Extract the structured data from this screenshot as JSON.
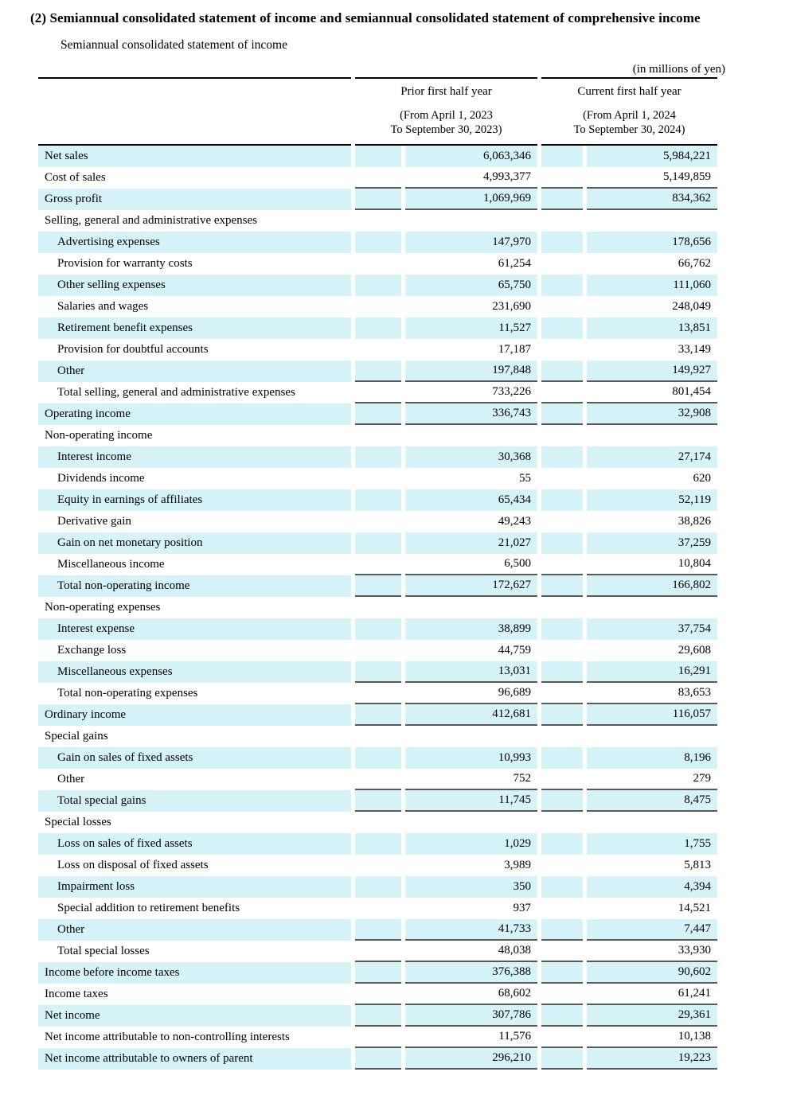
{
  "title": "(2) Semiannual consolidated statement of income and semiannual consolidated statement of comprehensive income",
  "subtitle": "Semiannual consolidated statement of income",
  "unit_note": "(in millions of yen)",
  "columns": {
    "prior": {
      "label": "Prior first half year",
      "period_line1": "(From April 1, 2023",
      "period_line2": "To September 30, 2023)"
    },
    "current": {
      "label": "Current first half year",
      "period_line1": "(From April 1, 2024",
      "period_line2": "To September 30, 2024)"
    }
  },
  "colors": {
    "row_highlight": "#d6f4f8",
    "header_rule": "#000000",
    "subtotal_rule": "#5a5a5a"
  },
  "rows": [
    {
      "label": "Net sales",
      "indent": 0,
      "prior": "6,063,346",
      "current": "5,984,221",
      "rule": false
    },
    {
      "label": "Cost of sales",
      "indent": 0,
      "prior": "4,993,377",
      "current": "5,149,859",
      "rule": true
    },
    {
      "label": "Gross profit",
      "indent": 0,
      "prior": "1,069,969",
      "current": "834,362",
      "rule": true
    },
    {
      "label": "Selling, general and administrative expenses",
      "indent": 0,
      "prior": "",
      "current": "",
      "rule": false
    },
    {
      "label": "Advertising expenses",
      "indent": 1,
      "prior": "147,970",
      "current": "178,656",
      "rule": false
    },
    {
      "label": "Provision for warranty costs",
      "indent": 1,
      "prior": "61,254",
      "current": "66,762",
      "rule": false
    },
    {
      "label": "Other selling expenses",
      "indent": 1,
      "prior": "65,750",
      "current": "111,060",
      "rule": false
    },
    {
      "label": "Salaries and wages",
      "indent": 1,
      "prior": "231,690",
      "current": "248,049",
      "rule": false
    },
    {
      "label": "Retirement benefit expenses",
      "indent": 1,
      "prior": "11,527",
      "current": "13,851",
      "rule": false
    },
    {
      "label": "Provision for doubtful accounts",
      "indent": 1,
      "prior": "17,187",
      "current": "33,149",
      "rule": false
    },
    {
      "label": "Other",
      "indent": 1,
      "prior": "197,848",
      "current": "149,927",
      "rule": true
    },
    {
      "label": "Total selling, general and administrative expenses",
      "indent": 1,
      "prior": "733,226",
      "current": "801,454",
      "rule": true
    },
    {
      "label": "Operating income",
      "indent": 0,
      "prior": "336,743",
      "current": "32,908",
      "rule": true
    },
    {
      "label": "Non-operating income",
      "indent": 0,
      "prior": "",
      "current": "",
      "rule": false
    },
    {
      "label": "Interest income",
      "indent": 1,
      "prior": "30,368",
      "current": "27,174",
      "rule": false
    },
    {
      "label": "Dividends income",
      "indent": 1,
      "prior": "55",
      "current": "620",
      "rule": false
    },
    {
      "label": "Equity in earnings of affiliates",
      "indent": 1,
      "prior": "65,434",
      "current": "52,119",
      "rule": false
    },
    {
      "label": "Derivative gain",
      "indent": 1,
      "prior": "49,243",
      "current": "38,826",
      "rule": false
    },
    {
      "label": "Gain on net monetary position",
      "indent": 1,
      "prior": "21,027",
      "current": "37,259",
      "rule": false
    },
    {
      "label": "Miscellaneous income",
      "indent": 1,
      "prior": "6,500",
      "current": "10,804",
      "rule": true
    },
    {
      "label": "Total non-operating income",
      "indent": 1,
      "prior": "172,627",
      "current": "166,802",
      "rule": true
    },
    {
      "label": "Non-operating expenses",
      "indent": 0,
      "prior": "",
      "current": "",
      "rule": false
    },
    {
      "label": "Interest expense",
      "indent": 1,
      "prior": "38,899",
      "current": "37,754",
      "rule": false
    },
    {
      "label": "Exchange loss",
      "indent": 1,
      "prior": "44,759",
      "current": "29,608",
      "rule": false
    },
    {
      "label": "Miscellaneous expenses",
      "indent": 1,
      "prior": "13,031",
      "current": "16,291",
      "rule": true
    },
    {
      "label": "Total non-operating expenses",
      "indent": 1,
      "prior": "96,689",
      "current": "83,653",
      "rule": true
    },
    {
      "label": "Ordinary income",
      "indent": 0,
      "prior": "412,681",
      "current": "116,057",
      "rule": true
    },
    {
      "label": "Special gains",
      "indent": 0,
      "prior": "",
      "current": "",
      "rule": false
    },
    {
      "label": "Gain on sales of fixed assets",
      "indent": 1,
      "prior": "10,993",
      "current": "8,196",
      "rule": false
    },
    {
      "label": "Other",
      "indent": 1,
      "prior": "752",
      "current": "279",
      "rule": true
    },
    {
      "label": "Total special gains",
      "indent": 1,
      "prior": "11,745",
      "current": "8,475",
      "rule": true
    },
    {
      "label": "Special losses",
      "indent": 0,
      "prior": "",
      "current": "",
      "rule": false
    },
    {
      "label": "Loss on sales of fixed assets",
      "indent": 1,
      "prior": "1,029",
      "current": "1,755",
      "rule": false
    },
    {
      "label": "Loss on disposal of fixed assets",
      "indent": 1,
      "prior": "3,989",
      "current": "5,813",
      "rule": false
    },
    {
      "label": "Impairment loss",
      "indent": 1,
      "prior": "350",
      "current": "4,394",
      "rule": false
    },
    {
      "label": "Special addition to retirement benefits",
      "indent": 1,
      "prior": "937",
      "current": "14,521",
      "rule": false
    },
    {
      "label": "Other",
      "indent": 1,
      "prior": "41,733",
      "current": "7,447",
      "rule": true
    },
    {
      "label": "Total special losses",
      "indent": 1,
      "prior": "48,038",
      "current": "33,930",
      "rule": true
    },
    {
      "label": "Income before income taxes",
      "indent": 0,
      "prior": "376,388",
      "current": "90,602",
      "rule": true
    },
    {
      "label": "Income taxes",
      "indent": 0,
      "prior": "68,602",
      "current": "61,241",
      "rule": true
    },
    {
      "label": "Net income",
      "indent": 0,
      "prior": "307,786",
      "current": "29,361",
      "rule": true
    },
    {
      "label": "Net income attributable to non-controlling interests",
      "indent": 0,
      "prior": "11,576",
      "current": "10,138",
      "rule": true
    },
    {
      "label": "Net income attributable to owners of parent",
      "indent": 0,
      "prior": "296,210",
      "current": "19,223",
      "rule": true
    }
  ]
}
